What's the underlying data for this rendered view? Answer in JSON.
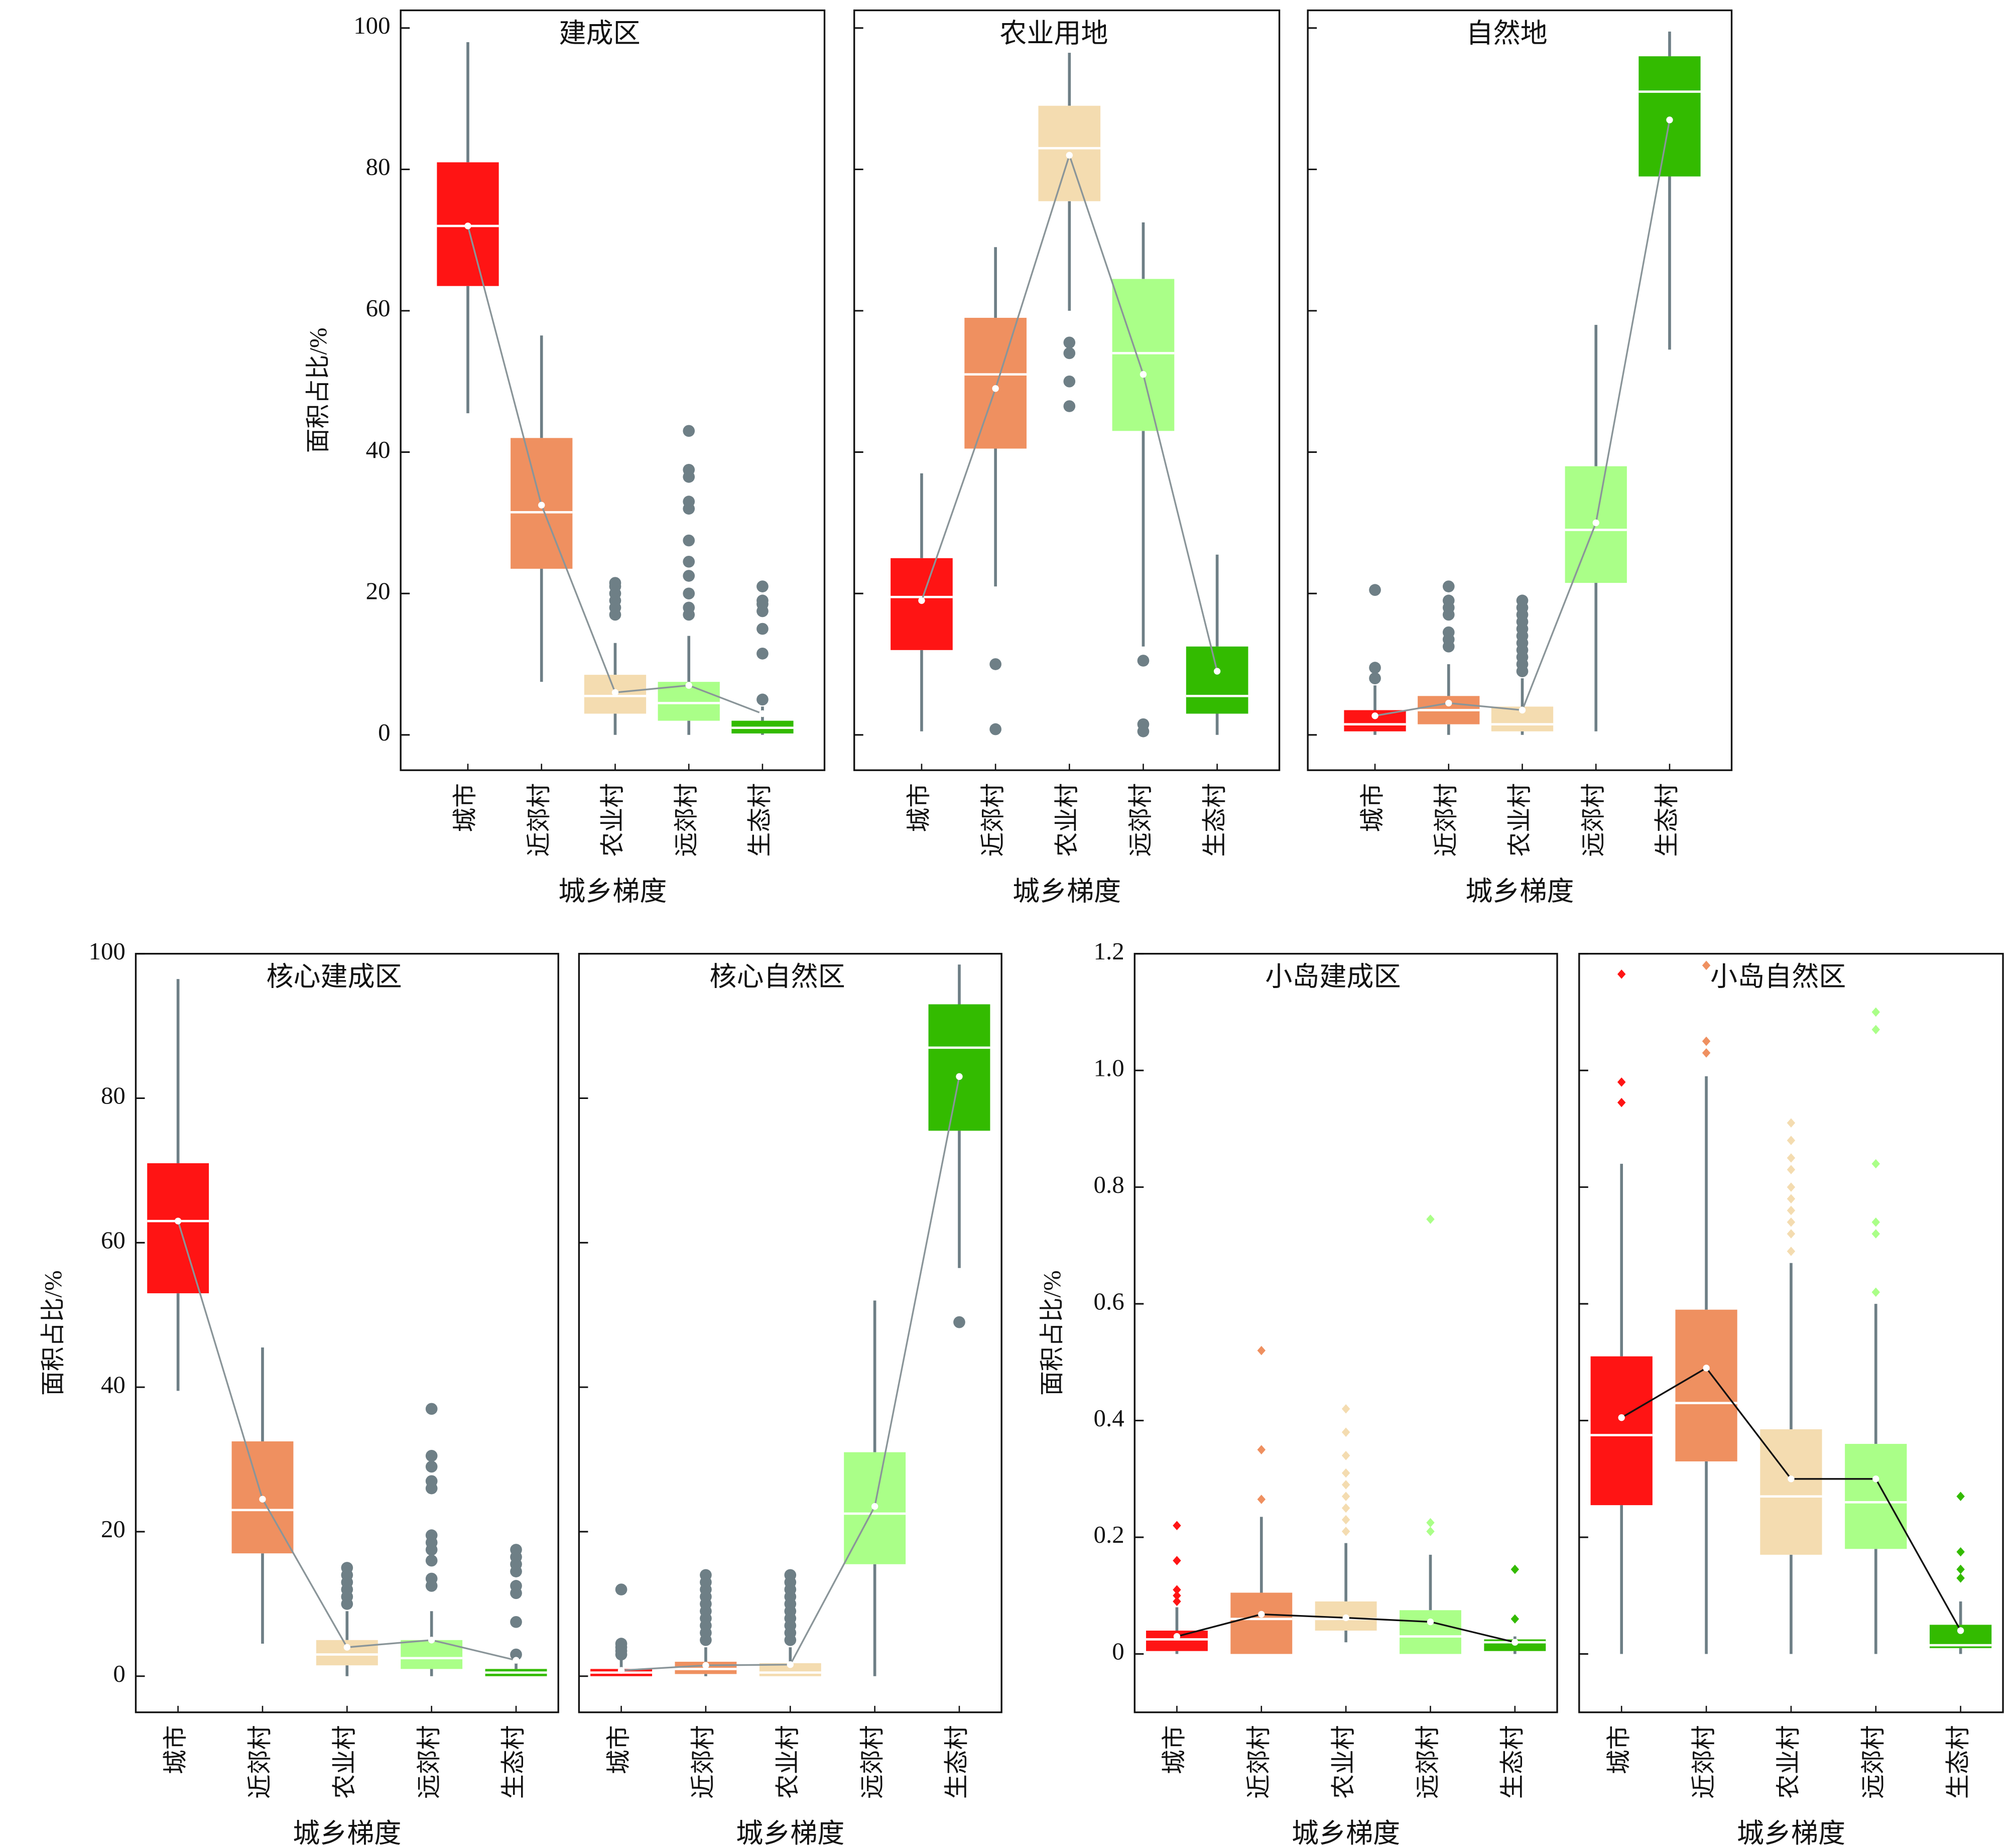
{
  "chart_data": [
    {
      "type": "box",
      "title": "建成区",
      "ylabel": "面积占比/%",
      "xlabel": "城乡梯度",
      "categories": [
        "城市",
        "近郊村",
        "农业村",
        "远郊村",
        "生态村"
      ],
      "colors": [
        "#ff1414",
        "#ef9060",
        "#f4dcb0",
        "#aaff88",
        "#33bb00"
      ],
      "ylim": [
        -5,
        102.5
      ],
      "yticks": [
        0,
        20,
        40,
        60,
        80,
        100
      ],
      "mean_line_color": "#8a9599",
      "flier_marker": "circle",
      "flier_color": "#6e7f86",
      "boxes": [
        {
          "whislo": 45.5,
          "q1": 63.5,
          "med": 72,
          "q3": 81,
          "whishi": 98,
          "mean": 72,
          "fliers": []
        },
        {
          "whislo": 7.5,
          "q1": 23.5,
          "med": 31.5,
          "q3": 42,
          "whishi": 56.5,
          "mean": 32.5,
          "fliers": []
        },
        {
          "whislo": 0,
          "q1": 3,
          "med": 5.5,
          "q3": 8.5,
          "whishi": 13,
          "mean": 6,
          "fliers": [
            17,
            18,
            19,
            20,
            21,
            21.5
          ]
        },
        {
          "whislo": 0,
          "q1": 2,
          "med": 4.5,
          "q3": 7.5,
          "whishi": 14,
          "mean": 7,
          "fliers": [
            17,
            18,
            20,
            22.5,
            24.5,
            27.5,
            32,
            33,
            36.5,
            37.5,
            43
          ]
        },
        {
          "whislo": 0,
          "q1": 0.2,
          "med": 1,
          "q3": 2,
          "whishi": 4,
          "mean": 3,
          "fliers": [
            5,
            11.5,
            15,
            17.5,
            18.5,
            19,
            21
          ]
        }
      ]
    },
    {
      "type": "box",
      "title": "农业用地",
      "xlabel": "城乡梯度",
      "categories": [
        "城市",
        "近郊村",
        "农业村",
        "远郊村",
        "生态村"
      ],
      "colors": [
        "#ff1414",
        "#ef9060",
        "#f4dcb0",
        "#aaff88",
        "#33bb00"
      ],
      "mean_line_color": "#8a9599",
      "flier_marker": "circle",
      "flier_color": "#6e7f86",
      "boxes": [
        {
          "whislo": 0.5,
          "q1": 12,
          "med": 19.5,
          "q3": 25,
          "whishi": 37,
          "mean": 19,
          "fliers": []
        },
        {
          "whislo": 21,
          "q1": 40.5,
          "med": 51,
          "q3": 59,
          "whishi": 69,
          "mean": 49,
          "fliers": [
            0.8,
            10
          ]
        },
        {
          "whislo": 60,
          "q1": 75.5,
          "med": 83,
          "q3": 89,
          "whishi": 96.5,
          "mean": 82,
          "fliers": [
            46.5,
            50,
            54,
            55.5
          ]
        },
        {
          "whislo": 12.5,
          "q1": 43,
          "med": 54,
          "q3": 64.5,
          "whishi": 72.5,
          "mean": 51,
          "fliers": [
            0.5,
            1.5,
            10.5
          ]
        },
        {
          "whislo": 0,
          "q1": 3,
          "med": 5.5,
          "q3": 12.5,
          "whishi": 25.5,
          "mean": 9,
          "fliers": []
        }
      ]
    },
    {
      "type": "box",
      "title": "自然地",
      "xlabel": "城乡梯度",
      "categories": [
        "城市",
        "近郊村",
        "农业村",
        "远郊村",
        "生态村"
      ],
      "colors": [
        "#ff1414",
        "#ef9060",
        "#f4dcb0",
        "#aaff88",
        "#33bb00"
      ],
      "mean_line_color": "#8a9599",
      "flier_marker": "circle",
      "flier_color": "#6e7f86",
      "boxes": [
        {
          "whislo": 0,
          "q1": 0.5,
          "med": 1.5,
          "q3": 3.5,
          "whishi": 7,
          "mean": 2.7,
          "fliers": [
            8,
            9.5,
            20.5
          ]
        },
        {
          "whislo": 0,
          "q1": 1.5,
          "med": 3.5,
          "q3": 5.5,
          "whishi": 10,
          "mean": 4.5,
          "fliers": [
            12.5,
            13.5,
            14.5,
            17,
            18,
            19,
            21
          ]
        },
        {
          "whislo": 0,
          "q1": 0.5,
          "med": 1.5,
          "q3": 4,
          "whishi": 8,
          "mean": 3.5,
          "fliers": [
            9,
            10,
            11,
            12,
            13,
            14,
            15,
            16,
            17,
            18,
            19
          ]
        },
        {
          "whislo": 0.5,
          "q1": 21.5,
          "med": 29,
          "q3": 38,
          "whishi": 58,
          "mean": 30,
          "fliers": []
        },
        {
          "whislo": 54.5,
          "q1": 79,
          "med": 91,
          "q3": 96,
          "whishi": 99.5,
          "mean": 87,
          "fliers": []
        }
      ]
    },
    {
      "type": "box",
      "title": "核心建成区",
      "ylabel": "面积占比/%",
      "xlabel": "城乡梯度",
      "categories": [
        "城市",
        "近郊村",
        "农业村",
        "远郊村",
        "生态村"
      ],
      "colors": [
        "#ff1414",
        "#ef9060",
        "#f4dcb0",
        "#aaff88",
        "#33bb00"
      ],
      "ylim": [
        -5,
        100
      ],
      "yticks": [
        0,
        20,
        40,
        60,
        80,
        100
      ],
      "mean_line_color": "#8a9599",
      "flier_marker": "circle",
      "flier_color": "#6e7f86",
      "boxes": [
        {
          "whislo": 39.5,
          "q1": 53,
          "med": 63,
          "q3": 71,
          "whishi": 96.5,
          "mean": 63,
          "fliers": []
        },
        {
          "whislo": 4.5,
          "q1": 17,
          "med": 23,
          "q3": 32.5,
          "whishi": 45.5,
          "mean": 24.5,
          "fliers": []
        },
        {
          "whislo": 0,
          "q1": 1.5,
          "med": 3,
          "q3": 5,
          "whishi": 9,
          "mean": 4,
          "fliers": [
            10,
            11,
            12,
            13,
            14,
            15
          ]
        },
        {
          "whislo": 0,
          "q1": 1,
          "med": 2.5,
          "q3": 5,
          "whishi": 9,
          "mean": 5,
          "fliers": [
            12.5,
            13.5,
            16,
            17.5,
            18.5,
            19.5,
            26,
            27,
            29,
            30.5,
            37
          ]
        },
        {
          "whislo": 0,
          "q1": 0,
          "med": 0.5,
          "q3": 1,
          "whishi": 2.5,
          "mean": 2.2,
          "fliers": [
            3,
            7.5,
            11.5,
            12.5,
            14.5,
            15.5,
            16.5,
            17.5
          ]
        }
      ]
    },
    {
      "type": "box",
      "title": "核心自然区",
      "xlabel": "城乡梯度",
      "categories": [
        "城市",
        "近郊村",
        "农业村",
        "远郊村",
        "生态村"
      ],
      "colors": [
        "#ff1414",
        "#ef9060",
        "#f4dcb0",
        "#aaff88",
        "#33bb00"
      ],
      "mean_line_color": "#8a9599",
      "flier_marker": "circle",
      "flier_color": "#6e7f86",
      "boxes": [
        {
          "whislo": 0,
          "q1": 0,
          "med": 0.5,
          "q3": 1,
          "whishi": 2.5,
          "mean": 0.8,
          "fliers": [
            3,
            3.5,
            4,
            4.5,
            12
          ]
        },
        {
          "whislo": 0,
          "q1": 0.3,
          "med": 1,
          "q3": 2,
          "whishi": 4,
          "mean": 1.5,
          "fliers": [
            5,
            6,
            7,
            8,
            9,
            10,
            11,
            12,
            13,
            14
          ]
        },
        {
          "whislo": 0,
          "q1": 0,
          "med": 0.5,
          "q3": 1.8,
          "whishi": 4,
          "mean": 1.6,
          "fliers": [
            5,
            6,
            7,
            8,
            9,
            10,
            11,
            12,
            13,
            14
          ]
        },
        {
          "whislo": 0,
          "q1": 15.5,
          "med": 22.5,
          "q3": 31,
          "whishi": 52,
          "mean": 23.5,
          "fliers": []
        },
        {
          "whislo": 56.5,
          "q1": 75.5,
          "med": 87,
          "q3": 93,
          "whishi": 98.5,
          "mean": 83,
          "fliers": [
            49
          ]
        }
      ]
    },
    {
      "type": "box",
      "title": "小岛建成区",
      "ylabel": "面积占比/%",
      "xlabel": "城乡梯度",
      "categories": [
        "城市",
        "近郊村",
        "农业村",
        "远郊村",
        "生态村"
      ],
      "colors": [
        "#ff1414",
        "#ef9060",
        "#f4dcb0",
        "#aaff88",
        "#33bb00"
      ],
      "ylim": [
        -0.1,
        1.2
      ],
      "yticks": [
        0,
        0.2,
        0.4,
        0.6,
        0.8,
        {
          "value": 1,
          "label": "1.0"
        },
        1.2
      ],
      "mean_line_color": "#111111",
      "flier_marker": "diamond",
      "boxes": [
        {
          "whislo": 0,
          "q1": 0.005,
          "med": 0.025,
          "q3": 0.04,
          "whishi": 0.08,
          "mean": 0.03,
          "fliers": [
            0.09,
            0.1,
            0.11,
            0.16,
            0.22
          ]
        },
        {
          "whislo": 0,
          "q1": 0,
          "med": 0.06,
          "q3": 0.105,
          "whishi": 0.235,
          "mean": 0.068,
          "fliers": [
            0.265,
            0.35,
            0.52
          ]
        },
        {
          "whislo": 0.02,
          "q1": 0.04,
          "med": 0.06,
          "q3": 0.09,
          "whishi": 0.19,
          "mean": 0.062,
          "fliers": [
            0.21,
            0.23,
            0.25,
            0.27,
            0.29,
            0.31,
            0.34,
            0.38,
            0.42
          ]
        },
        {
          "whislo": 0,
          "q1": 0,
          "med": 0.03,
          "q3": 0.075,
          "whishi": 0.17,
          "mean": 0.055,
          "fliers": [
            0.21,
            0.225,
            0.745
          ]
        },
        {
          "whislo": 0,
          "q1": 0.005,
          "med": 0.02,
          "q3": 0.025,
          "whishi": 0.03,
          "mean": 0.02,
          "fliers": [
            0.06,
            0.145
          ]
        }
      ]
    },
    {
      "type": "box",
      "title": "小岛自然区",
      "xlabel": "城乡梯度",
      "categories": [
        "城市",
        "近郊村",
        "农业村",
        "远郊村",
        "生态村"
      ],
      "colors": [
        "#ff1414",
        "#ef9060",
        "#f4dcb0",
        "#aaff88",
        "#33bb00"
      ],
      "mean_line_color": "#111111",
      "flier_marker": "diamond",
      "boxes": [
        {
          "whislo": 0,
          "q1": 0.255,
          "med": 0.375,
          "q3": 0.51,
          "whishi": 0.84,
          "mean": 0.405,
          "fliers": [
            0.945,
            0.98,
            1.165
          ]
        },
        {
          "whislo": 0,
          "q1": 0.33,
          "med": 0.43,
          "q3": 0.59,
          "whishi": 0.99,
          "mean": 0.49,
          "fliers": [
            1.03,
            1.05,
            1.18
          ]
        },
        {
          "whislo": 0,
          "q1": 0.17,
          "med": 0.27,
          "q3": 0.385,
          "whishi": 0.67,
          "mean": 0.3,
          "fliers": [
            0.69,
            0.72,
            0.74,
            0.76,
            0.78,
            0.8,
            0.83,
            0.85,
            0.88,
            0.91
          ]
        },
        {
          "whislo": 0,
          "q1": 0.18,
          "med": 0.26,
          "q3": 0.36,
          "whishi": 0.6,
          "mean": 0.3,
          "fliers": [
            0.62,
            0.72,
            0.74,
            0.84,
            1.07,
            1.1
          ]
        },
        {
          "whislo": 0,
          "q1": 0.01,
          "med": 0.015,
          "q3": 0.05,
          "whishi": 0.09,
          "mean": 0.04,
          "fliers": [
            0.13,
            0.145,
            0.175,
            0.27
          ]
        }
      ]
    }
  ]
}
